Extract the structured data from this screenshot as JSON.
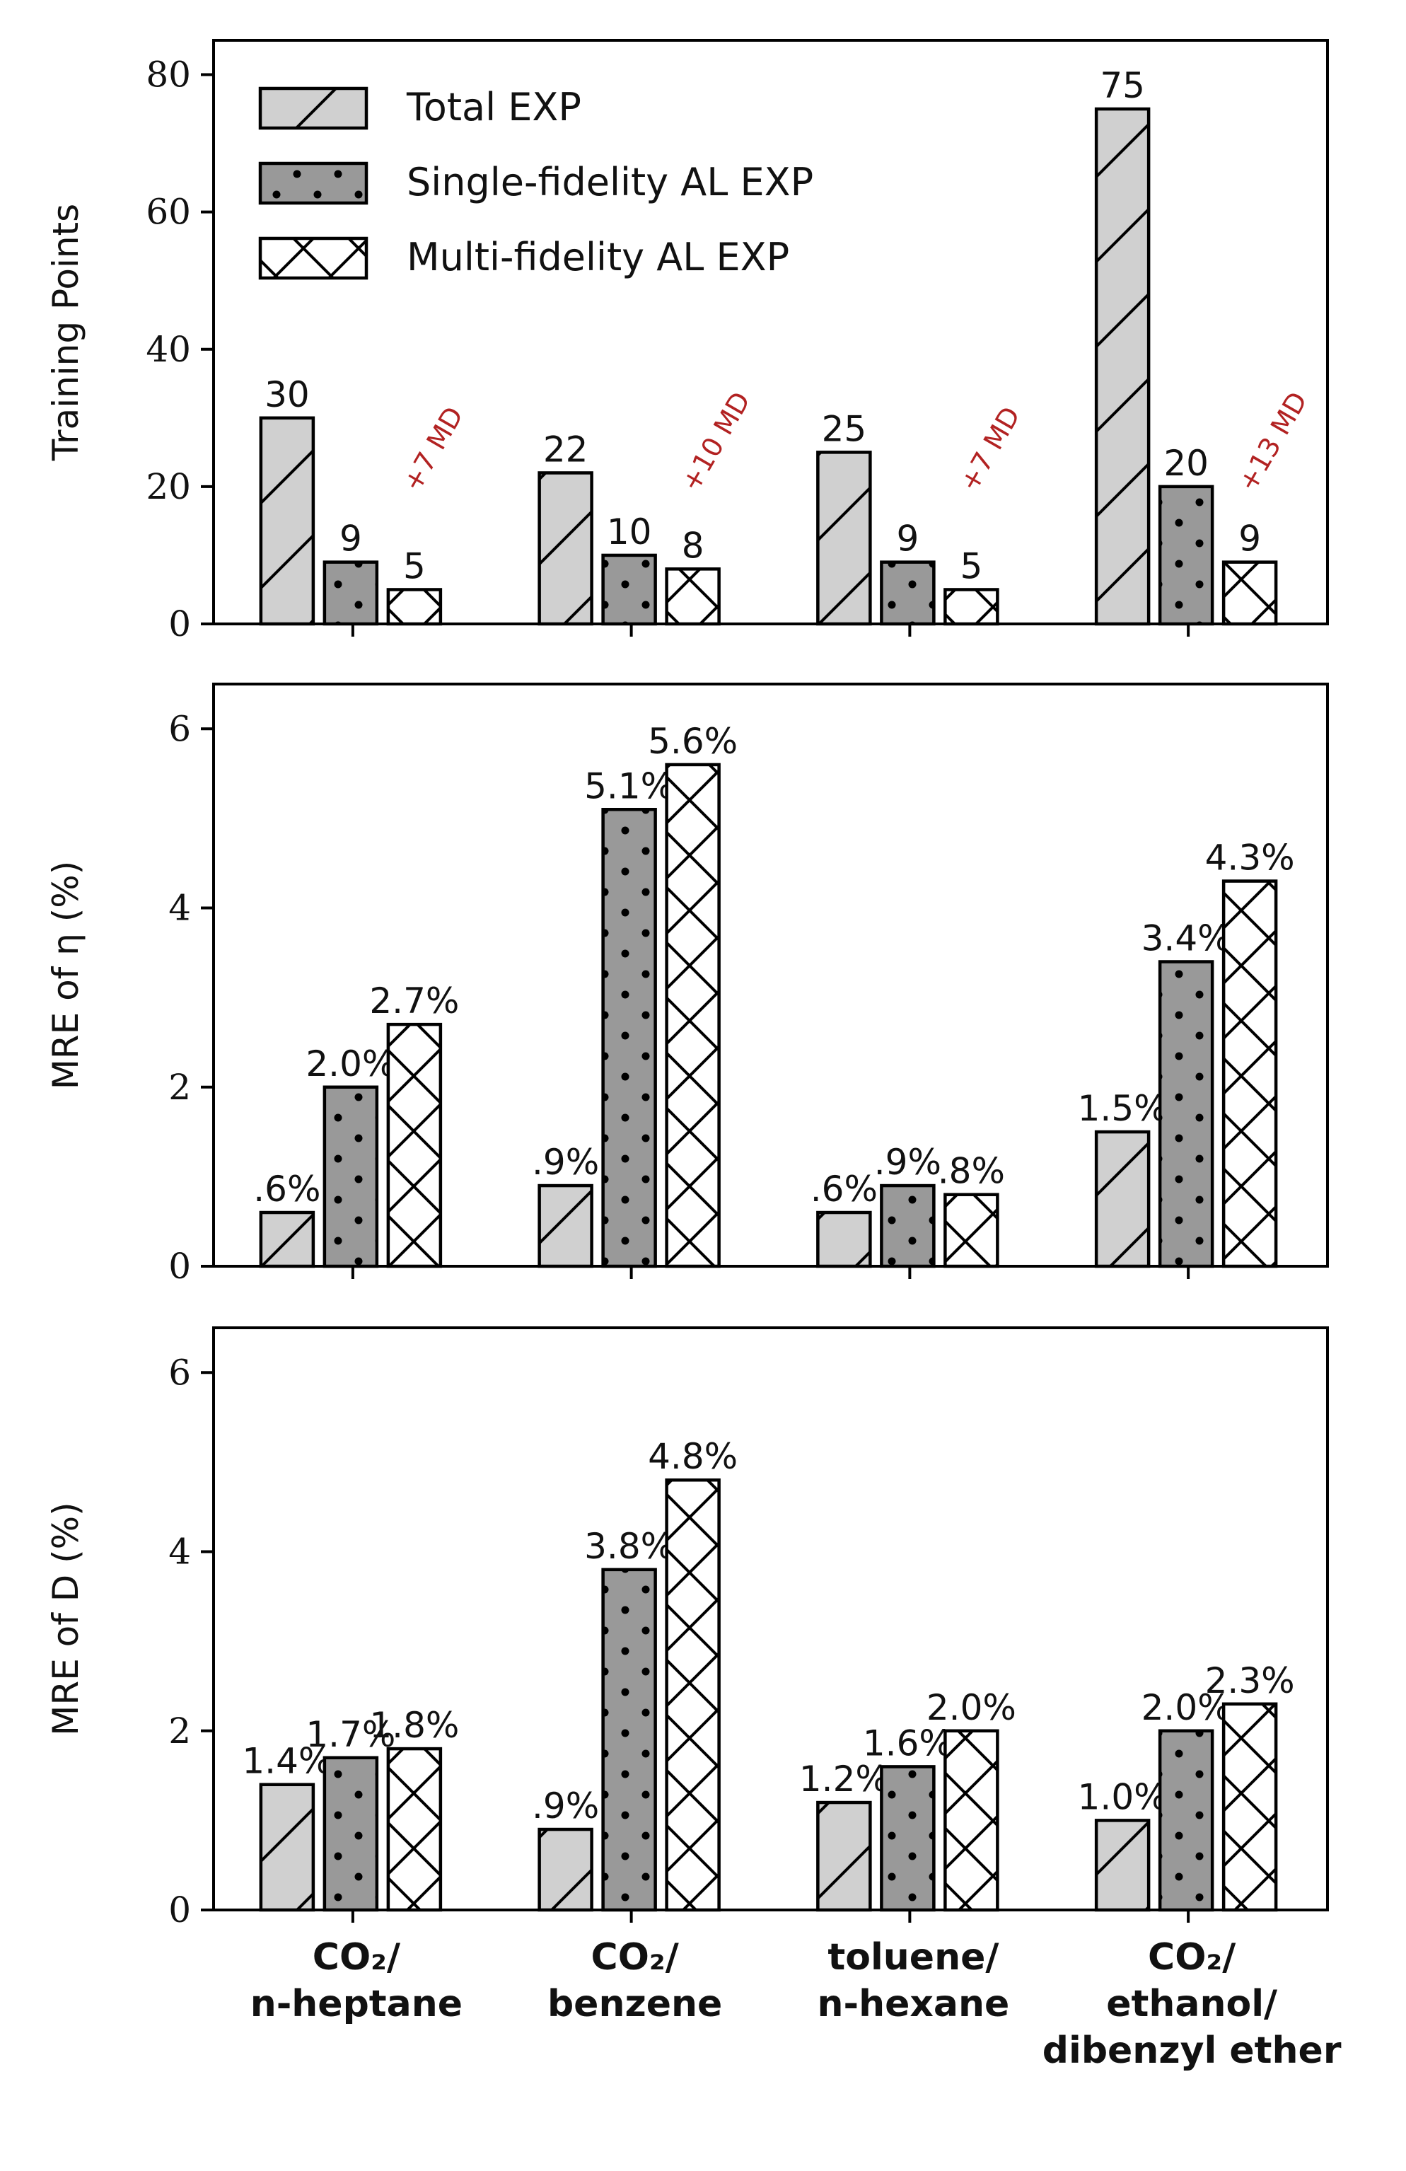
{
  "colors": {
    "total": "#d0d0d0",
    "single": "#999999",
    "multi": "#ffffff",
    "md_annotation": "#b22222"
  },
  "legend": {
    "location": "top-left",
    "entries": [
      "Total EXP",
      "Single-fidelity AL EXP",
      "Multi-fidelity AL EXP"
    ]
  },
  "chart_data": [
    {
      "type": "bar",
      "ylabel": "Training Points",
      "ylim": [
        0,
        85
      ],
      "yticks": [
        0,
        20,
        40,
        60,
        80
      ],
      "categories": [
        "CO₂/ n-heptane",
        "CO₂/ benzene",
        "toluene/ n-hexane",
        "CO₂/ ethanol/ dibenzyl ether"
      ],
      "series": [
        {
          "name": "Total EXP",
          "values": [
            30,
            22,
            25,
            75
          ],
          "labels": [
            "30",
            "22",
            "25",
            "75"
          ]
        },
        {
          "name": "Single-fidelity AL EXP",
          "values": [
            9,
            10,
            9,
            20
          ],
          "labels": [
            "9",
            "10",
            "9",
            "20"
          ]
        },
        {
          "name": "Multi-fidelity AL EXP",
          "values": [
            5,
            8,
            5,
            9
          ],
          "labels": [
            "5",
            "8",
            "5",
            "9"
          ]
        }
      ],
      "annotations": [
        "+7 MD",
        "+10 MD",
        "+7 MD",
        "+13 MD"
      ]
    },
    {
      "type": "bar",
      "ylabel": "MRE of η (%)",
      "ylim": [
        0,
        6.5
      ],
      "yticks": [
        0,
        2,
        4,
        6
      ],
      "categories": [
        "CO₂/ n-heptane",
        "CO₂/ benzene",
        "toluene/ n-hexane",
        "CO₂/ ethanol/ dibenzyl ether"
      ],
      "series": [
        {
          "name": "Total EXP",
          "values": [
            0.6,
            0.9,
            0.6,
            1.5
          ],
          "labels": [
            ".6%",
            ".9%",
            ".6%",
            "1.5%"
          ]
        },
        {
          "name": "Single-fidelity AL EXP",
          "values": [
            2.0,
            5.1,
            0.9,
            3.4
          ],
          "labels": [
            "2.0%",
            "5.1%",
            ".9%",
            "3.4%"
          ]
        },
        {
          "name": "Multi-fidelity AL EXP",
          "values": [
            2.7,
            5.6,
            0.8,
            4.3
          ],
          "labels": [
            "2.7%",
            "5.6%",
            ".8%",
            "4.3%"
          ]
        }
      ]
    },
    {
      "type": "bar",
      "ylabel": "MRE of D (%)",
      "ylim": [
        0,
        6.5
      ],
      "yticks": [
        0,
        2,
        4,
        6
      ],
      "categories": [
        "CO₂/ n-heptane",
        "CO₂/ benzene",
        "toluene/ n-hexane",
        "CO₂/ ethanol/ dibenzyl ether"
      ],
      "series": [
        {
          "name": "Total EXP",
          "values": [
            1.4,
            0.9,
            1.2,
            1.0
          ],
          "labels": [
            "1.4%",
            ".9%",
            "1.2%",
            "1.0%"
          ]
        },
        {
          "name": "Single-fidelity AL EXP",
          "values": [
            1.7,
            3.8,
            1.6,
            2.0
          ],
          "labels": [
            "1.7%",
            "3.8%",
            "1.6%",
            "2.0%"
          ]
        },
        {
          "name": "Multi-fidelity AL EXP",
          "values": [
            1.8,
            4.8,
            2.0,
            2.3
          ],
          "labels": [
            "1.8%",
            "4.8%",
            "2.0%",
            "2.3%"
          ]
        }
      ]
    }
  ],
  "x_axis_labels": [
    [
      "CO₂/",
      "n-heptane"
    ],
    [
      "CO₂/",
      "benzene"
    ],
    [
      "toluene/",
      "n-hexane"
    ],
    [
      "CO₂/",
      "ethanol/",
      "dibenzyl ether"
    ]
  ]
}
